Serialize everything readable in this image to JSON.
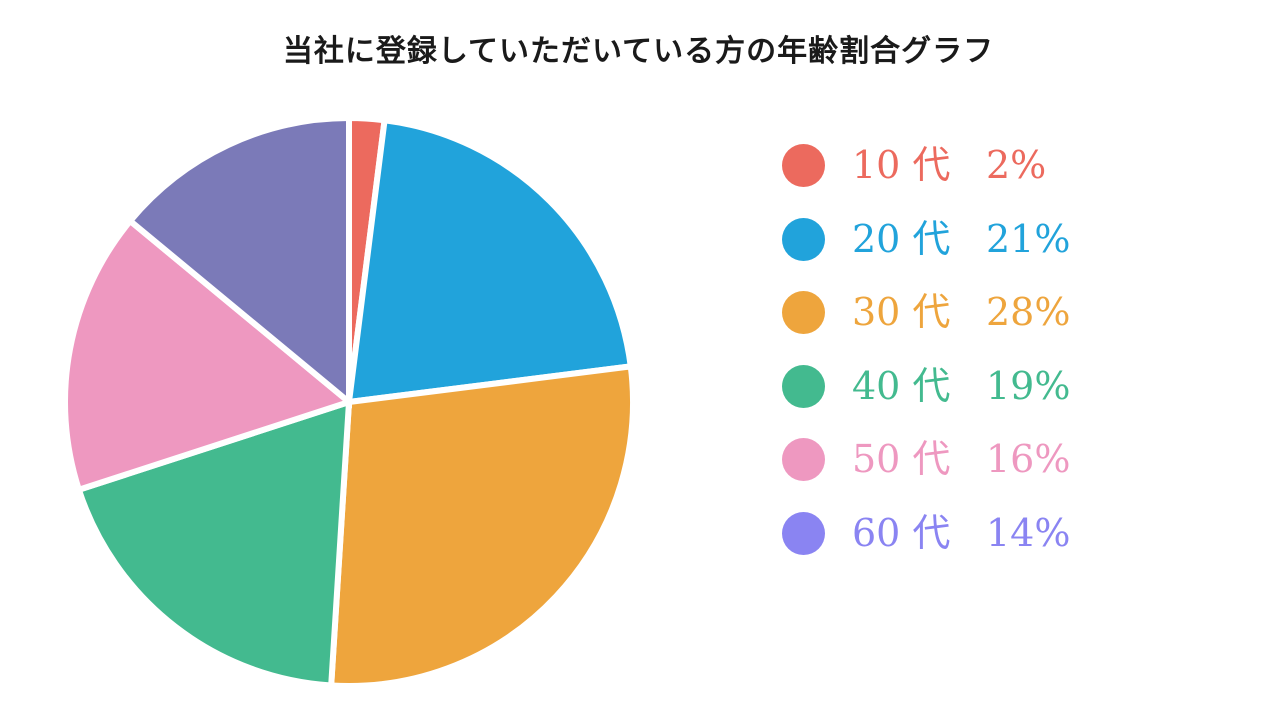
{
  "chart_data": {
    "type": "pie",
    "title": "当社に登録していただいている方の年齢割合グラフ",
    "unit": "%",
    "slices": [
      {
        "label": "10 代",
        "value": 2,
        "value_label": "2%",
        "color": "#EC6A5E",
        "text_color": "#EC6A5E"
      },
      {
        "label": "20 代",
        "value": 21,
        "value_label": "21%",
        "color": "#21A3DB",
        "text_color": "#21A3DB"
      },
      {
        "label": "30 代",
        "value": 28,
        "value_label": "28%",
        "color": "#EEA53D",
        "text_color": "#EEA53D"
      },
      {
        "label": "40 代",
        "value": 19,
        "value_label": "19%",
        "color": "#43BA8F",
        "text_color": "#43BA8F"
      },
      {
        "label": "50 代",
        "value": 16,
        "value_label": "16%",
        "color": "#EE98C0",
        "text_color": "#EE98C0"
      },
      {
        "label": "60 代",
        "value": 14,
        "value_label": "14%",
        "color": "#7B7AB8",
        "text_color": "#8A84F2"
      }
    ],
    "legend_position": "right"
  }
}
